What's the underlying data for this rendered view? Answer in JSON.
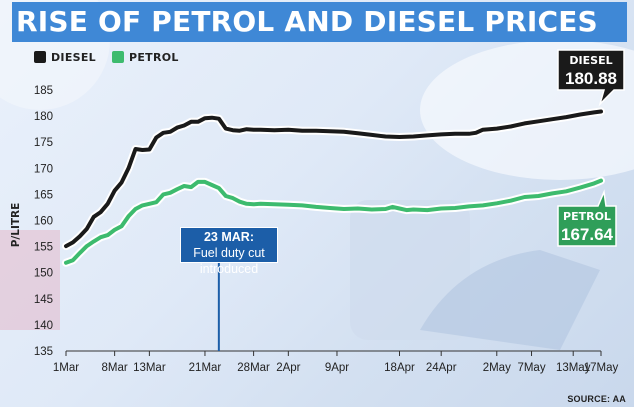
{
  "title": "RISE OF PETROL AND DIESEL PRICES",
  "source": "SOURCE: AA",
  "annotation": {
    "title": "23 MAR:",
    "text_line1": "Fuel duty cut",
    "text_line2": "introduced",
    "x_day": 22
  },
  "callouts": {
    "diesel": {
      "name": "DIESEL",
      "value": "180.88"
    },
    "petrol": {
      "name": "PETROL",
      "value": "167.64"
    }
  },
  "colors": {
    "title_bg": "#3f88d6",
    "diesel": "#1a1a1a",
    "petrol": "#3dbb6e",
    "petrol_callout": "#2f9e59",
    "annotation_bg": "#1c5ea8"
  },
  "chart_data": {
    "type": "line",
    "title": "RISE OF PETROL AND DIESEL PRICES",
    "xlabel": "",
    "ylabel": "P/LITRE",
    "ylim": [
      135,
      185
    ],
    "yticks": [
      135,
      140,
      145,
      150,
      155,
      160,
      165,
      170,
      175,
      180,
      185
    ],
    "xlim": [
      0,
      77
    ],
    "xticks": [
      {
        "day": 0,
        "label": "1Mar"
      },
      {
        "day": 7,
        "label": "8Mar"
      },
      {
        "day": 12,
        "label": "13Mar"
      },
      {
        "day": 20,
        "label": "21Mar"
      },
      {
        "day": 27,
        "label": "28Mar"
      },
      {
        "day": 32,
        "label": "2Apr"
      },
      {
        "day": 39,
        "label": "9Apr"
      },
      {
        "day": 48,
        "label": "18Apr"
      },
      {
        "day": 54,
        "label": "24Apr"
      },
      {
        "day": 62,
        "label": "2May"
      },
      {
        "day": 67,
        "label": "7May"
      },
      {
        "day": 73,
        "label": "13May"
      },
      {
        "day": 77,
        "label": "17May"
      }
    ],
    "legend": [
      "DIESEL",
      "PETROL"
    ],
    "legend_position": "top-left",
    "grid": false,
    "series": [
      {
        "name": "DIESEL",
        "x": [
          0,
          1,
          2,
          3,
          4,
          5,
          6,
          7,
          8,
          9,
          10,
          11,
          12,
          13,
          14,
          15,
          16,
          17,
          18,
          19,
          20,
          21,
          22,
          23,
          24,
          25,
          26,
          27,
          28,
          30,
          32,
          34,
          36,
          38,
          40,
          42,
          44,
          46,
          48,
          50,
          52,
          54,
          56,
          58,
          59,
          60,
          62,
          64,
          66,
          68,
          70,
          72,
          74,
          76,
          77
        ],
        "y": [
          155.1,
          155.8,
          157.0,
          158.4,
          160.7,
          161.6,
          163.2,
          165.7,
          167.3,
          170.0,
          173.7,
          173.5,
          173.6,
          175.9,
          176.8,
          177.0,
          177.8,
          178.2,
          178.9,
          178.9,
          179.6,
          179.7,
          179.5,
          177.6,
          177.3,
          177.2,
          177.5,
          177.4,
          177.4,
          177.3,
          177.4,
          177.2,
          177.2,
          177.1,
          177.0,
          176.7,
          176.4,
          176.1,
          176.0,
          176.1,
          176.3,
          176.5,
          176.6,
          176.6,
          176.8,
          177.4,
          177.6,
          178.0,
          178.6,
          179.0,
          179.4,
          179.8,
          180.3,
          180.7,
          180.88
        ]
      },
      {
        "name": "PETROL",
        "x": [
          0,
          1,
          2,
          3,
          4,
          5,
          6,
          7,
          8,
          9,
          10,
          11,
          12,
          13,
          14,
          15,
          16,
          17,
          18,
          19,
          20,
          21,
          22,
          23,
          24,
          25,
          26,
          27,
          28,
          30,
          32,
          34,
          36,
          38,
          40,
          42,
          44,
          46,
          47,
          48,
          49,
          50,
          52,
          54,
          56,
          58,
          60,
          62,
          64,
          66,
          68,
          70,
          72,
          74,
          76,
          77
        ],
        "y": [
          151.9,
          152.4,
          153.8,
          155.1,
          156.0,
          156.8,
          157.2,
          158.2,
          158.9,
          160.8,
          162.2,
          162.9,
          163.2,
          163.5,
          165.0,
          165.3,
          166.0,
          166.6,
          166.4,
          167.4,
          167.4,
          166.8,
          166.2,
          164.7,
          164.3,
          163.6,
          163.2,
          163.1,
          163.2,
          163.1,
          163.0,
          162.9,
          162.6,
          162.4,
          162.2,
          162.3,
          162.1,
          162.2,
          162.6,
          162.3,
          162.0,
          162.1,
          162.0,
          162.3,
          162.4,
          162.7,
          162.9,
          163.3,
          163.8,
          164.5,
          164.7,
          165.2,
          165.6,
          166.3,
          167.1,
          167.64
        ]
      }
    ]
  }
}
